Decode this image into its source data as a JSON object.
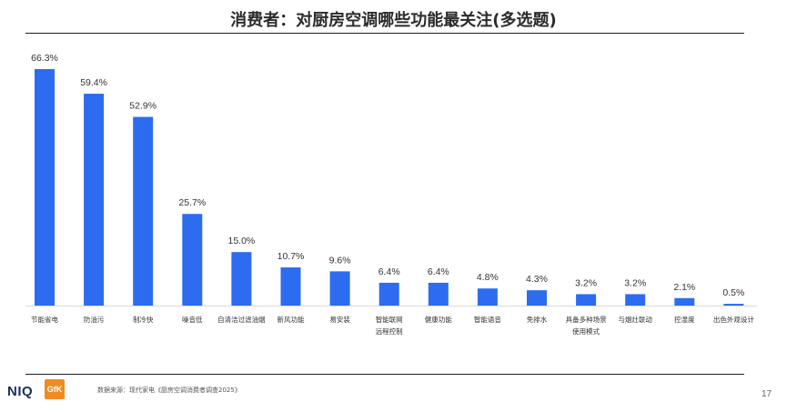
{
  "header": {
    "title": "消费者：对厨房空调哪些功能最关注(多选题)"
  },
  "chart_data": {
    "type": "bar",
    "title": "消费者：对厨房空调哪些功能最关注(多选题)",
    "xlabel": "",
    "ylabel": "",
    "unit": "%",
    "ylim": [
      0,
      70
    ],
    "grid": false,
    "legend": "none",
    "bar_color": "#2d6cf0",
    "categories": [
      [
        "节能省电"
      ],
      [
        "防油污"
      ],
      [
        "制冷快"
      ],
      [
        "噪音低"
      ],
      [
        "自清洁过滤油烟"
      ],
      [
        "新风功能"
      ],
      [
        "易安装"
      ],
      [
        "智能联网",
        "远程控制"
      ],
      [
        "健康功能"
      ],
      [
        "智能语音"
      ],
      [
        "免排水"
      ],
      [
        "具备多种场景",
        "使用模式"
      ],
      [
        "与烟灶联动"
      ],
      [
        "控湿度"
      ],
      [
        "出色外观设计"
      ]
    ],
    "values": [
      66.3,
      59.4,
      52.9,
      25.7,
      15.0,
      10.7,
      9.6,
      6.4,
      6.4,
      4.8,
      4.3,
      3.2,
      3.2,
      2.1,
      0.5
    ],
    "value_labels": [
      "66.3%",
      "59.4%",
      "52.9%",
      "25.7%",
      "15.0%",
      "10.7%",
      "9.6%",
      "6.4%",
      "6.4%",
      "4.8%",
      "4.3%",
      "3.2%",
      "3.2%",
      "2.1%",
      "0.5%"
    ]
  },
  "footer": {
    "brand_niq": "NIQ",
    "brand_gfk": "GfK",
    "source": "数据来源：现代家电《厨房空调消费者调查2025》",
    "page_number": "17",
    "brand_color_niq": "#1d2f5c",
    "brand_color_gfk": "#f08a24"
  }
}
